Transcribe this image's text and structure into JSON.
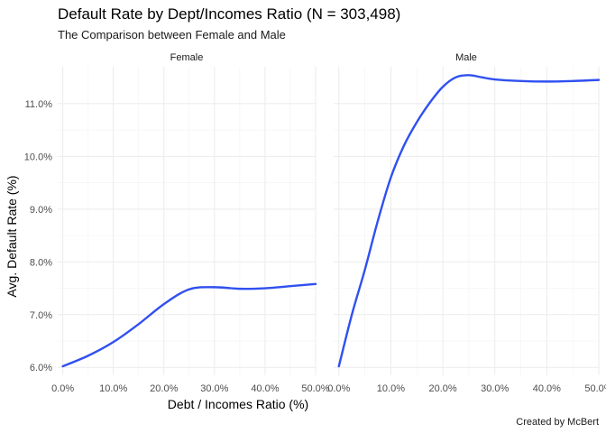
{
  "chart_data": {
    "type": "line",
    "title": "Default Rate by Dept/Incomes Ratio (N = 303,498)",
    "subtitle": "The Comparison between Female and Male",
    "xlabel": "Debt / Incomes Ratio (%)",
    "ylabel": "Avg. Default Rate (%)",
    "caption": "Created by McBert",
    "xlim": [
      -1,
      50
    ],
    "ylim": [
      5.85,
      11.7
    ],
    "x_ticks": [
      0,
      10,
      20,
      30,
      40,
      50
    ],
    "x_tick_labels": [
      "0.0%",
      "10.0%",
      "20.0%",
      "30.0%",
      "40.0%",
      "50.0%"
    ],
    "y_ticks": [
      6,
      7,
      8,
      9,
      10,
      11
    ],
    "y_tick_labels": [
      "6.0%",
      "7.0%",
      "8.0%",
      "9.0%",
      "10.0%",
      "11.0%"
    ],
    "grid": true,
    "line_color": "#3050f0",
    "panels": [
      {
        "name": "Female",
        "x": [
          0,
          5,
          10,
          15,
          20,
          25,
          30,
          35,
          40,
          45,
          50
        ],
        "y": [
          6.02,
          6.22,
          6.48,
          6.82,
          7.2,
          7.48,
          7.52,
          7.49,
          7.5,
          7.54,
          7.58
        ]
      },
      {
        "name": "Male",
        "x": [
          0,
          2.5,
          5,
          7.5,
          10,
          12.5,
          15,
          17.5,
          20,
          22.5,
          25,
          27.5,
          30,
          35,
          40,
          45,
          50
        ],
        "y": [
          6.02,
          7.0,
          7.85,
          8.78,
          9.6,
          10.2,
          10.65,
          11.02,
          11.32,
          11.5,
          11.54,
          11.5,
          11.46,
          11.43,
          11.42,
          11.43,
          11.45
        ]
      }
    ]
  }
}
